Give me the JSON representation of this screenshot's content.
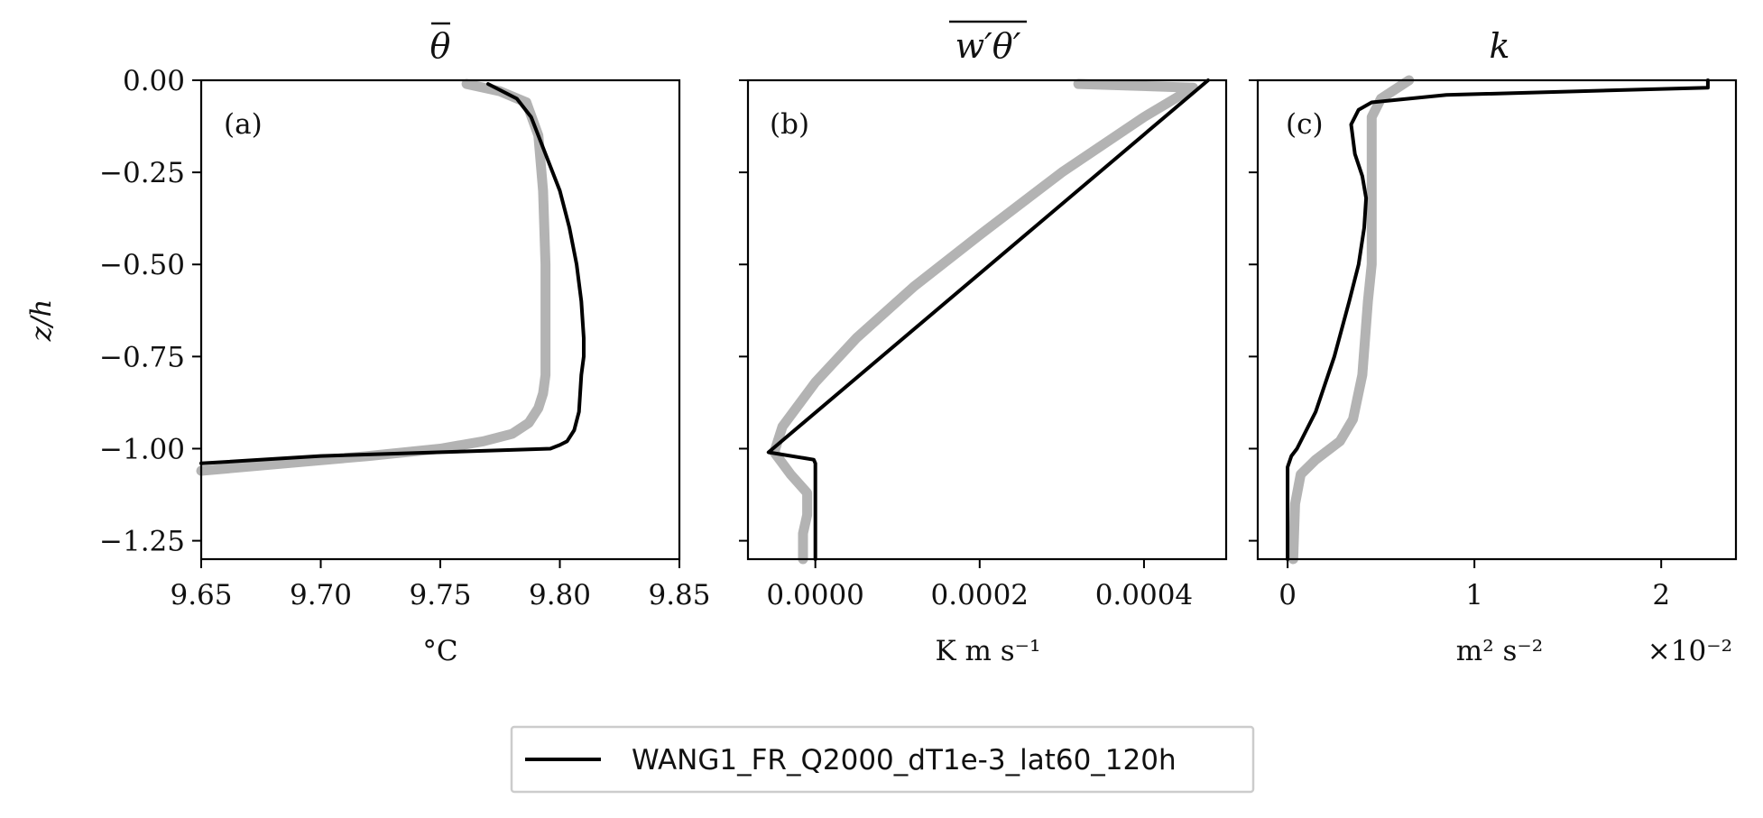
{
  "legend": {
    "entries": [
      "WANG1_FR_Q2000_dT1e-3_lat60_120h"
    ],
    "placement": "bottom-center"
  },
  "colors": {
    "black_series": "#000000",
    "gray_series": "#b3b3b3"
  },
  "chart_data": [
    {
      "type": "line",
      "panel_label": "(a)",
      "title": "θ̄",
      "xlabel": "°C",
      "ylabel": "z/h",
      "xlim": [
        9.65,
        9.85
      ],
      "ylim": [
        -1.3,
        0.0
      ],
      "xticks": [
        "9.65",
        "9.70",
        "9.75",
        "9.80",
        "9.85"
      ],
      "xtick_values": [
        9.65,
        9.7,
        9.75,
        9.8,
        9.85
      ],
      "yticks": [
        "0.00",
        "−0.25",
        "−0.50",
        "−0.75",
        "−1.00",
        "−1.25"
      ],
      "ytick_values": [
        0.0,
        -0.25,
        -0.5,
        -0.75,
        -1.0,
        -1.25
      ],
      "series": [
        {
          "name": "WANG1_FR_Q2000_dT1e-3_lat60_120h",
          "color": "#000000",
          "x": [
            9.77,
            9.782,
            9.788,
            9.794,
            9.8,
            9.804,
            9.807,
            9.809,
            9.81,
            9.81,
            9.809,
            9.808,
            9.806,
            9.803,
            9.8,
            9.796,
            9.7,
            9.65
          ],
          "y": [
            -0.01,
            -0.05,
            -0.1,
            -0.2,
            -0.3,
            -0.4,
            -0.5,
            -0.6,
            -0.7,
            -0.75,
            -0.8,
            -0.9,
            -0.95,
            -0.98,
            -0.99,
            -1.0,
            -1.02,
            -1.04
          ]
        },
        {
          "color": "#b3b3b3",
          "x": [
            9.761,
            9.775,
            9.786,
            9.791,
            9.793,
            9.794,
            9.794,
            9.794,
            9.793,
            9.791,
            9.787,
            9.78,
            9.768,
            9.75,
            9.72,
            9.65
          ],
          "y": [
            -0.01,
            -0.03,
            -0.06,
            -0.15,
            -0.3,
            -0.5,
            -0.65,
            -0.8,
            -0.85,
            -0.89,
            -0.93,
            -0.96,
            -0.98,
            -1.0,
            -1.02,
            -1.06
          ]
        }
      ]
    },
    {
      "type": "line",
      "panel_label": "(b)",
      "title": "w′θ′ (overline)",
      "xlabel": "K m s⁻¹",
      "ylim": [
        -1.3,
        0.0
      ],
      "xlim": [
        -8.2e-05,
        0.0005
      ],
      "xticks": [
        "0.0000",
        "0.0002",
        "0.0004"
      ],
      "xtick_values": [
        0.0,
        0.0002,
        0.0004
      ],
      "series": [
        {
          "color": "#000000",
          "x": [
            0.000478,
            -5.7e-05,
            -2e-06,
            0.0,
            0.0
          ],
          "y": [
            0.0,
            -1.01,
            -1.03,
            -1.04,
            -1.3
          ]
        },
        {
          "color": "#b3b3b3",
          "x": [
            0.00032,
            0.00046,
            0.0004,
            0.0003,
            0.0002,
            0.00012,
            5e-05,
            0.0,
            -4e-05,
            -5e-05,
            -3e-05,
            -1e-05,
            -1e-05,
            -1.5e-05,
            -1.5e-05
          ],
          "y": [
            -0.01,
            -0.02,
            -0.1,
            -0.25,
            -0.42,
            -0.56,
            -0.7,
            -0.82,
            -0.94,
            -1.01,
            -1.07,
            -1.12,
            -1.18,
            -1.23,
            -1.3
          ]
        }
      ]
    },
    {
      "type": "line",
      "panel_label": "(c)",
      "title": "k",
      "xlabel": "m² s⁻²",
      "offset_label": "×10⁻²",
      "ylim": [
        -1.3,
        0.0
      ],
      "xlim": [
        -0.16,
        2.4
      ],
      "xticks": [
        "0",
        "1",
        "2"
      ],
      "xtick_values": [
        0,
        1,
        2
      ],
      "series": [
        {
          "color": "#000000",
          "x": [
            2.25,
            2.25,
            0.85,
            0.45,
            0.38,
            0.34,
            0.36,
            0.4,
            0.42,
            0.41,
            0.38,
            0.33,
            0.25,
            0.15,
            0.05,
            0.02,
            0.0,
            0.0,
            0.0
          ],
          "y": [
            0.0,
            -0.02,
            -0.04,
            -0.06,
            -0.08,
            -0.12,
            -0.2,
            -0.26,
            -0.32,
            -0.4,
            -0.5,
            -0.6,
            -0.75,
            -0.9,
            -1.0,
            -1.02,
            -1.05,
            -1.1,
            -1.3
          ]
        },
        {
          "color": "#b3b3b3",
          "x": [
            0.65,
            0.5,
            0.45,
            0.45,
            0.45,
            0.43,
            0.4,
            0.35,
            0.28,
            0.15,
            0.07,
            0.04,
            0.03
          ],
          "y": [
            0.0,
            -0.05,
            -0.1,
            -0.3,
            -0.5,
            -0.6,
            -0.8,
            -0.92,
            -0.98,
            -1.03,
            -1.07,
            -1.15,
            -1.3
          ]
        }
      ]
    }
  ]
}
